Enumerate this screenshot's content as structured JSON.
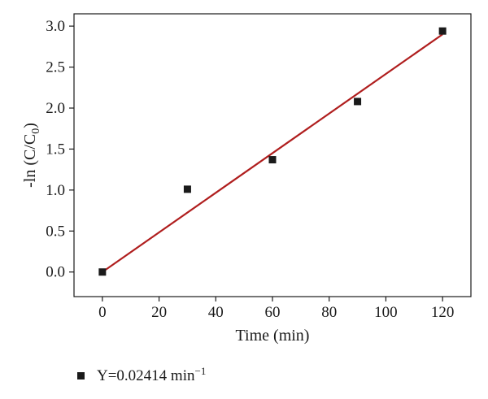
{
  "chart_data": {
    "type": "scatter",
    "x": [
      0,
      30,
      60,
      90,
      120
    ],
    "y": [
      0.0,
      1.01,
      1.37,
      2.08,
      2.94
    ],
    "fit_line": {
      "x": [
        0,
        120
      ],
      "y": [
        0.0,
        2.9
      ],
      "color": "#b01e1e"
    },
    "xlabel": "Time (min)",
    "ylabel_main": "-ln (C/C",
    "ylabel_sub": "0",
    "ylabel_close": ")",
    "xlim": [
      -10,
      130
    ],
    "ylim": [
      -0.3,
      3.15
    ],
    "xticks": [
      0,
      20,
      40,
      60,
      80,
      100,
      120
    ],
    "yticks": [
      0.0,
      0.5,
      1.0,
      1.5,
      2.0,
      2.5,
      3.0
    ],
    "xtick_labels": [
      "0",
      "20",
      "40",
      "60",
      "80",
      "100",
      "120"
    ],
    "ytick_labels": [
      "0.0",
      "0.5",
      "1.0",
      "1.5",
      "2.0",
      "2.5",
      "3.0"
    ],
    "marker": "square",
    "marker_color": "#1a1a1a",
    "grid": false,
    "legend": {
      "placement": "bottom-left",
      "label_main": "Y=0.02414 min",
      "label_sup": "−1"
    }
  }
}
